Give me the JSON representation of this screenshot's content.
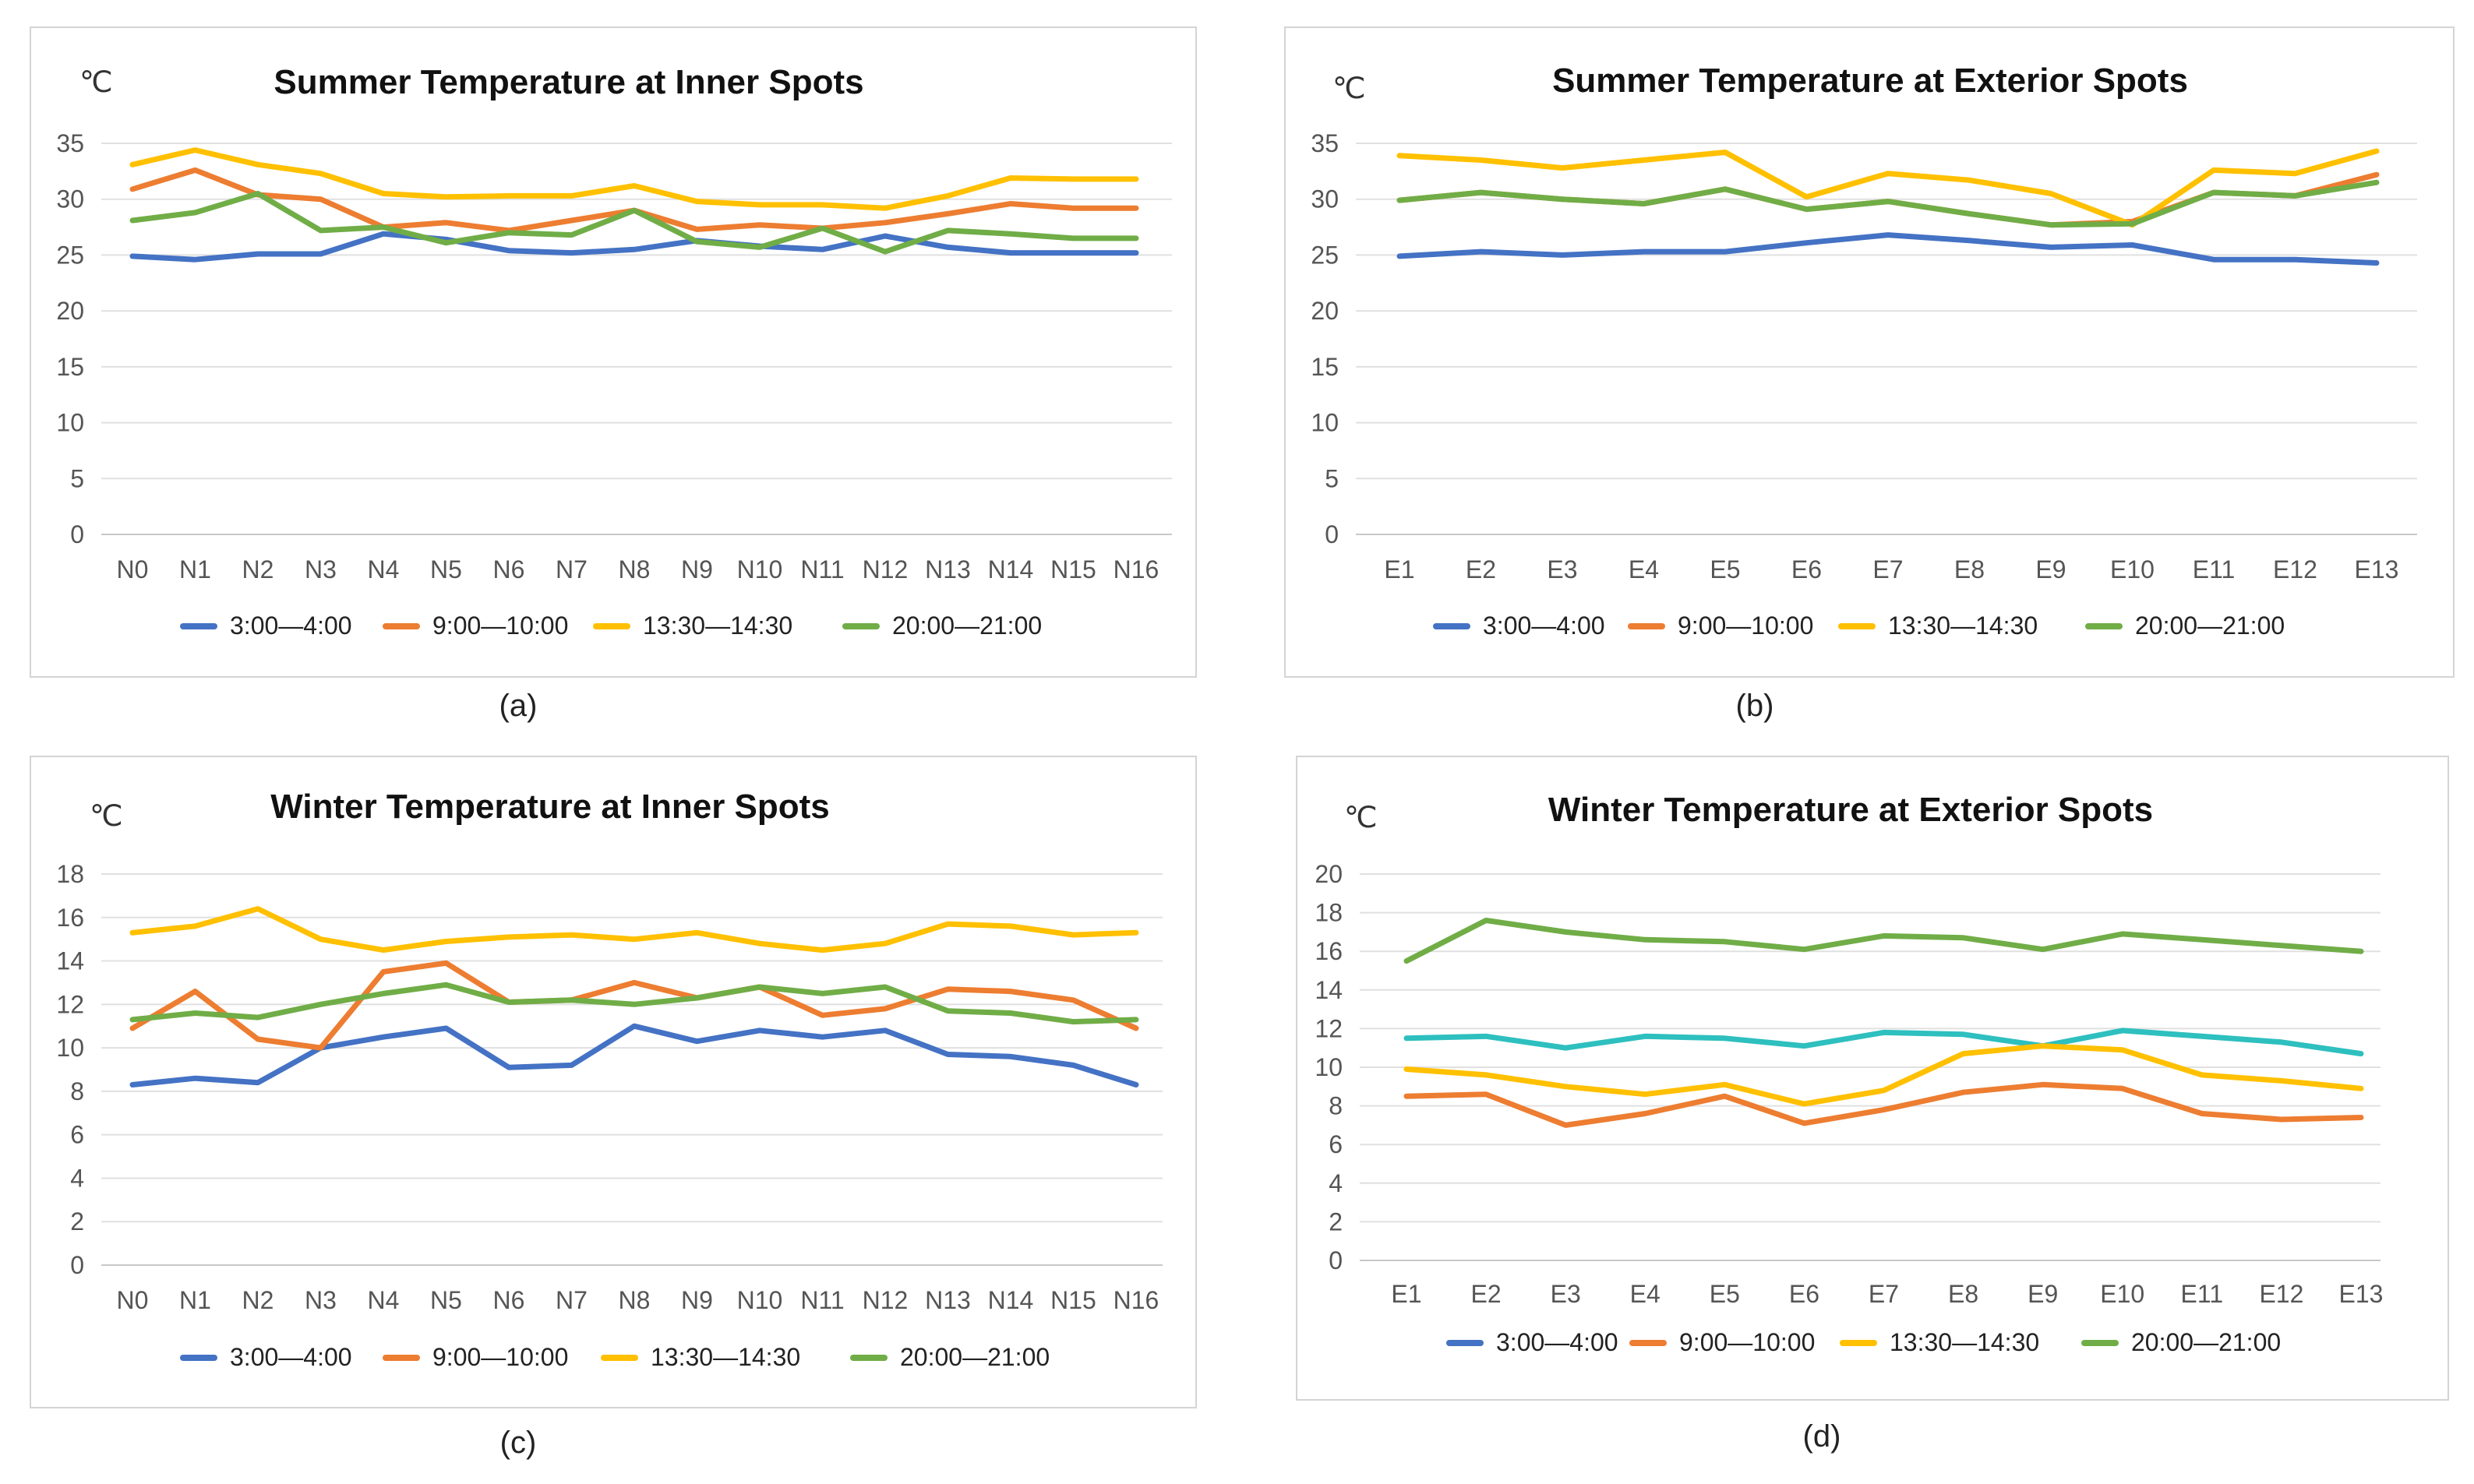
{
  "chart_data": [
    {
      "type": "line",
      "title": "Summer Temperature at Inner Spots",
      "unit": "℃",
      "caption": "(a)",
      "categories": [
        "N0",
        "N1",
        "N2",
        "N3",
        "N4",
        "N5",
        "N6",
        "N7",
        "N8",
        "N9",
        "N10",
        "N11",
        "N12",
        "N13",
        "N14",
        "N15",
        "N16"
      ],
      "ylim": [
        0,
        35
      ],
      "yticks": [
        0,
        5,
        10,
        15,
        20,
        25,
        30,
        35
      ],
      "grid": true,
      "legend": "bottom",
      "series": [
        {
          "name": "3:00—4:00",
          "color": "#4472c4",
          "values": [
            24.9,
            24.6,
            25.1,
            25.1,
            26.9,
            26.4,
            25.4,
            25.2,
            25.5,
            26.3,
            25.8,
            25.5,
            26.7,
            25.7,
            25.2,
            25.2,
            25.2
          ]
        },
        {
          "name": "9:00—10:00",
          "color": "#ed7d31",
          "values": [
            30.9,
            32.6,
            30.4,
            30.0,
            27.5,
            27.9,
            27.2,
            28.1,
            29.0,
            27.3,
            27.7,
            27.4,
            27.9,
            28.7,
            29.6,
            29.2,
            29.2
          ]
        },
        {
          "name": "13:30—14:30",
          "color": "#ffc000",
          "values": [
            33.1,
            34.4,
            33.1,
            32.3,
            30.5,
            30.2,
            30.3,
            30.3,
            31.2,
            29.8,
            29.5,
            29.5,
            29.2,
            30.3,
            31.9,
            31.8,
            31.8
          ]
        },
        {
          "name": "20:00—21:00",
          "color": "#70ad47",
          "values": [
            28.1,
            28.8,
            30.5,
            27.2,
            27.5,
            26.1,
            27.0,
            26.8,
            29.0,
            26.2,
            25.7,
            27.4,
            25.3,
            27.2,
            26.9,
            26.5,
            26.5
          ]
        }
      ]
    },
    {
      "type": "line",
      "title": "Summer Temperature at Exterior Spots",
      "unit": "℃",
      "caption": "(b)",
      "categories": [
        "E1",
        "E2",
        "E3",
        "E4",
        "E5",
        "E6",
        "E7",
        "E8",
        "E9",
        "E10",
        "E11",
        "E12",
        "E13"
      ],
      "ylim": [
        0,
        35
      ],
      "yticks": [
        0,
        5,
        10,
        15,
        20,
        25,
        30,
        35
      ],
      "grid": true,
      "legend": "bottom",
      "series": [
        {
          "name": "3:00—4:00",
          "color": "#4472c4",
          "values": [
            24.9,
            25.3,
            25.0,
            25.3,
            25.3,
            26.1,
            26.8,
            26.3,
            25.7,
            25.9,
            24.6,
            24.6,
            24.3
          ]
        },
        {
          "name": "9:00—10:00",
          "color": "#ed7d31",
          "values": [
            29.9,
            30.6,
            30.0,
            29.6,
            30.9,
            29.1,
            29.8,
            28.7,
            27.7,
            28.0,
            30.6,
            30.3,
            32.2
          ]
        },
        {
          "name": "13:30—14:30",
          "color": "#ffc000",
          "values": [
            33.9,
            33.5,
            32.8,
            33.5,
            34.2,
            30.2,
            32.3,
            31.7,
            30.5,
            27.7,
            32.6,
            32.3,
            34.3
          ]
        },
        {
          "name": "20:00—21:00",
          "color": "#70ad47",
          "values": [
            29.9,
            30.6,
            30.0,
            29.6,
            30.9,
            29.1,
            29.8,
            28.7,
            27.7,
            27.8,
            30.6,
            30.3,
            31.5
          ]
        }
      ]
    },
    {
      "type": "line",
      "title": "Winter Temperature at Inner Spots",
      "unit": "℃",
      "caption": "(c)",
      "categories": [
        "N0",
        "N1",
        "N2",
        "N3",
        "N4",
        "N5",
        "N6",
        "N7",
        "N8",
        "N9",
        "N10",
        "N11",
        "N12",
        "N13",
        "N14",
        "N15",
        "N16"
      ],
      "ylim": [
        0,
        18
      ],
      "yticks": [
        0,
        2,
        4,
        6,
        8,
        10,
        12,
        14,
        16,
        18
      ],
      "grid": true,
      "legend": "bottom",
      "series": [
        {
          "name": "3:00—4:00",
          "color": "#4472c4",
          "values": [
            8.3,
            8.6,
            8.4,
            10.0,
            10.5,
            10.9,
            9.1,
            9.2,
            11.0,
            10.3,
            10.8,
            10.5,
            10.8,
            9.7,
            9.6,
            9.2,
            8.3
          ]
        },
        {
          "name": "9:00—10:00",
          "color": "#ed7d31",
          "values": [
            10.9,
            12.6,
            10.4,
            10.0,
            13.5,
            13.9,
            12.1,
            12.2,
            13.0,
            12.3,
            12.8,
            11.5,
            11.8,
            12.7,
            12.6,
            12.2,
            10.9
          ]
        },
        {
          "name": "13:30—14:30",
          "color": "#ffc000",
          "values": [
            15.3,
            15.6,
            16.4,
            15.0,
            14.5,
            14.9,
            15.1,
            15.2,
            15.0,
            15.3,
            14.8,
            14.5,
            14.8,
            15.7,
            15.6,
            15.2,
            15.3
          ]
        },
        {
          "name": "20:00—21:00",
          "color": "#70ad47",
          "values": [
            11.3,
            11.6,
            11.4,
            12.0,
            12.5,
            12.9,
            12.1,
            12.2,
            12.0,
            12.3,
            12.8,
            12.5,
            12.8,
            11.7,
            11.6,
            11.2,
            11.3
          ]
        }
      ]
    },
    {
      "type": "line",
      "title": "Winter Temperature at Exterior Spots",
      "unit": "℃",
      "caption": "(d)",
      "categories": [
        "E1",
        "E2",
        "E3",
        "E4",
        "E5",
        "E6",
        "E7",
        "E8",
        "E9",
        "E10",
        "E11",
        "E12",
        "E13"
      ],
      "ylim": [
        0,
        20
      ],
      "yticks": [
        0,
        2,
        4,
        6,
        8,
        10,
        12,
        14,
        16,
        18,
        20
      ],
      "grid": true,
      "legend": "bottom",
      "series": [
        {
          "name": "3:00—4:00",
          "color": "#2ebfbf",
          "values": [
            11.5,
            11.6,
            11.0,
            11.6,
            11.5,
            11.1,
            11.8,
            11.7,
            11.1,
            11.9,
            11.6,
            11.3,
            10.7
          ]
        },
        {
          "name": "9:00—10:00",
          "color": "#ed7d31",
          "values": [
            8.5,
            8.6,
            7.0,
            7.6,
            8.5,
            7.1,
            7.8,
            8.7,
            9.1,
            8.9,
            7.6,
            7.3,
            7.4
          ]
        },
        {
          "name": "13:30—14:30",
          "color": "#ffc000",
          "values": [
            9.9,
            9.6,
            9.0,
            8.6,
            9.1,
            8.1,
            8.8,
            10.7,
            11.1,
            10.9,
            9.6,
            9.3,
            8.9
          ]
        },
        {
          "name": "20:00—21:00",
          "color": "#70ad47",
          "values": [
            15.5,
            17.6,
            17.0,
            16.6,
            16.5,
            16.1,
            16.8,
            16.7,
            16.1,
            16.9,
            16.6,
            16.3,
            16.0
          ]
        }
      ],
      "legend_colors": [
        "#4472c4",
        "#ed7d31",
        "#ffc000",
        "#70ad47"
      ]
    }
  ]
}
